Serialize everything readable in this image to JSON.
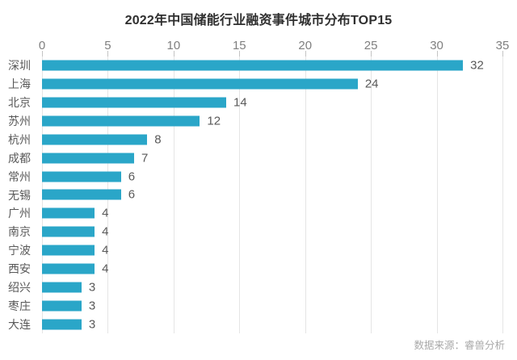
{
  "chart_data": {
    "type": "bar",
    "orientation": "horizontal",
    "title": "2022年中国储能行业融资事件城市分布TOP15",
    "categories": [
      "深圳",
      "上海",
      "北京",
      "苏州",
      "杭州",
      "成都",
      "常州",
      "无锡",
      "广州",
      "南京",
      "宁波",
      "西安",
      "绍兴",
      "枣庄",
      "大连"
    ],
    "values": [
      32,
      24,
      14,
      12,
      8,
      7,
      6,
      6,
      4,
      4,
      4,
      4,
      3,
      3,
      3
    ],
    "xlabel": "",
    "ylabel": "",
    "xlim": [
      0,
      35
    ],
    "xticks": [
      0,
      5,
      10,
      15,
      20,
      25,
      30,
      35
    ],
    "grid": true,
    "value_labels": true,
    "legend": "none",
    "bar_color": "#2aa6c8"
  },
  "footer": {
    "source": "数据来源：睿兽分析"
  },
  "colors": {
    "bar": "#2aa6c8",
    "title_text": "#2f2f2f",
    "axis_text": "#7f7f7f",
    "label_text": "#595959",
    "gridline": "#e5e5e5",
    "source_text": "#a9a9a9",
    "background": "#ffffff"
  }
}
